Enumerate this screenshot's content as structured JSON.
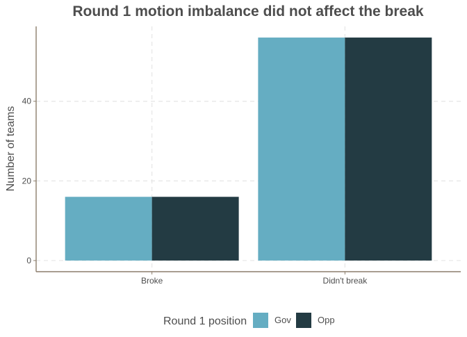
{
  "chart_data": {
    "type": "bar",
    "title": "Round 1 motion imbalance did not affect the break",
    "xlabel": "",
    "ylabel": "Number of teams",
    "categories": [
      "Broke",
      "Didn't break"
    ],
    "series": [
      {
        "name": "Gov",
        "values": [
          16,
          56
        ],
        "color": "#65adc2"
      },
      {
        "name": "Opp",
        "values": [
          16,
          56
        ],
        "color": "#233b43"
      }
    ],
    "y_ticks": [
      0,
      20,
      40
    ],
    "ylim": [
      -2.8,
      58.8
    ],
    "grid": true,
    "legend": {
      "title": "Round 1 position",
      "placement": "bottom"
    }
  },
  "colors": {
    "axis": "#8b7d6b",
    "grid": "#e5e5e5",
    "title": "#4d4d4d",
    "tick_label": "#4d4d4d"
  }
}
